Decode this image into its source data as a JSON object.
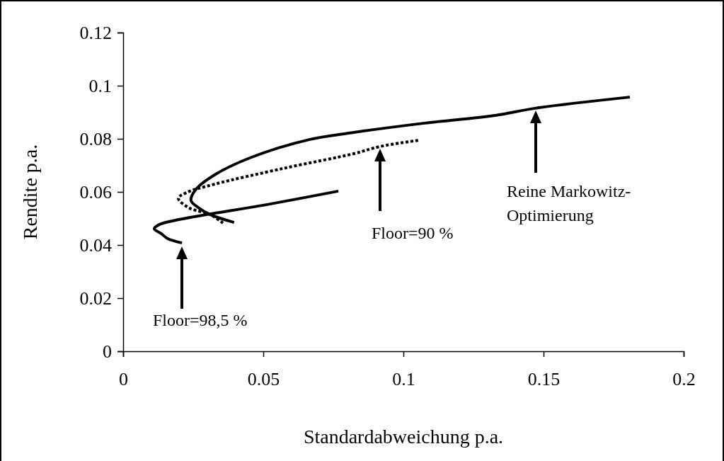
{
  "chart_data": {
    "type": "line",
    "xlabel": "Standardabweichung p.a.",
    "ylabel": "Rendite p.a.",
    "xlim": [
      0,
      0.2
    ],
    "xticks": [
      0,
      0.05,
      0.1,
      0.15,
      0.2
    ],
    "ylim": [
      0,
      0.12
    ],
    "yticks": [
      0,
      0.02,
      0.04,
      0.06,
      0.08,
      0.1,
      0.12
    ],
    "grid": false,
    "marker": "none",
    "series": [
      {
        "color": "#000000",
        "line_style": "solid",
        "x": [
          0.0396,
          0.031,
          0.0268,
          0.0242,
          0.026,
          0.0326,
          0.0452,
          0.0664,
          0.0823,
          0.1076,
          0.1328,
          0.147,
          0.1808
        ],
        "values": [
          0.0485,
          0.0515,
          0.0541,
          0.0568,
          0.061,
          0.0664,
          0.0728,
          0.0797,
          0.0824,
          0.0859,
          0.0888,
          0.0915,
          0.0957
        ]
      },
      {
        "color": "#000000",
        "line_style": "dotted",
        "x": [
          0.0356,
          0.031,
          0.0235,
          0.0197,
          0.0225,
          0.0326,
          0.0578,
          0.0823,
          0.0917,
          0.1058
        ],
        "values": [
          0.0483,
          0.0515,
          0.054,
          0.0576,
          0.0597,
          0.0629,
          0.069,
          0.0744,
          0.0771,
          0.0795
        ]
      },
      {
        "color": "#000000",
        "line_style": "solid",
        "x": [
          0.021,
          0.0159,
          0.0136,
          0.0111,
          0.0129,
          0.02,
          0.03,
          0.0495,
          0.0768
        ],
        "values": [
          0.0408,
          0.0424,
          0.0443,
          0.0461,
          0.0477,
          0.0496,
          0.0515,
          0.0549,
          0.0603
        ]
      }
    ],
    "annotations": [
      "Floor=98,5 %",
      "Floor=90 %",
      "Reine Markowitz-Optimierung"
    ]
  }
}
